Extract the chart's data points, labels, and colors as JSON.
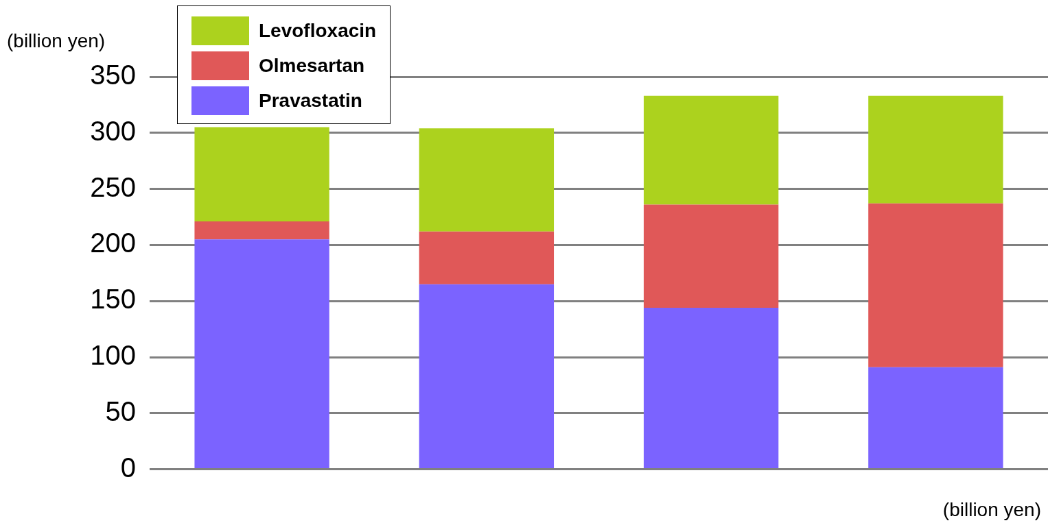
{
  "chart_data": {
    "type": "bar",
    "stacked": true,
    "categories": [
      null,
      null,
      null,
      null
    ],
    "ylabel": "(billion yen)",
    "xlabel": "(billion yen)",
    "ylim": [
      0,
      350
    ],
    "yticks": [
      0,
      50,
      100,
      150,
      200,
      250,
      300,
      350
    ],
    "grid": "y",
    "legend": "top left",
    "series": [
      {
        "name": "Pravastatin",
        "color": "#7b63ff",
        "values": [
          205,
          165,
          144,
          91
        ]
      },
      {
        "name": "Olmesartan",
        "color": "#e05858",
        "values": [
          16,
          47,
          92,
          146
        ]
      },
      {
        "name": "Levofloxacin",
        "color": "#acd21e",
        "values": [
          84,
          92,
          97,
          96
        ]
      }
    ]
  }
}
